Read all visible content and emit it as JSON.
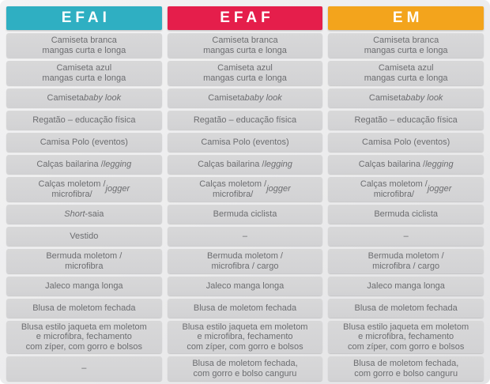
{
  "colors": {
    "efai_header": "#2fafc2",
    "efaf_header": "#e51e4b",
    "em_header": "#f3a41c",
    "cell_background": "#d5d5d6",
    "cell_text": "#6c6d70"
  },
  "table": {
    "columns": [
      {
        "id": "efai",
        "header": {
          "label": "EFAI",
          "color": "#2fafc2"
        },
        "cells": [
          "Camiseta branca\nmangas curta e longa",
          "Camiseta azul\nmangas curta e longa",
          "Camiseta *baby look*",
          "Regatão – educação física",
          "Camisa Polo (eventos)",
          "Calças bailarina / *legging*",
          "Calças moletom /\nmicrofibra/ *jogger*",
          "*Short*-saia",
          "Vestido",
          "Bermuda moletom /\nmicrofibra",
          "Jaleco manga longa",
          "Blusa de moletom fechada",
          "Blusa estilo jaqueta em moletom\ne microfibra, fechamento\ncom zíper, com gorro e bolsos",
          "–"
        ]
      },
      {
        "id": "efaf",
        "header": {
          "label": "EFAF",
          "color": "#e51e4b"
        },
        "cells": [
          "Camiseta branca\nmangas curta e longa",
          "Camiseta azul\nmangas curta e longa",
          "Camiseta *baby look*",
          "Regatão – educação física",
          "Camisa Polo (eventos)",
          "Calças bailarina / *legging*",
          "Calças moletom /\nmicrofibra/ *jogger*",
          "Bermuda ciclista",
          "–",
          "Bermuda moletom /\nmicrofibra / cargo",
          "Jaleco manga longa",
          "Blusa de moletom fechada",
          "Blusa estilo jaqueta em moletom\ne microfibra, fechamento\ncom zíper, com gorro e bolsos",
          "Blusa de moletom fechada,\ncom gorro e bolso canguru"
        ]
      },
      {
        "id": "em",
        "header": {
          "label": "EM",
          "color": "#f3a41c"
        },
        "cells": [
          "Camiseta branca\nmangas curta e longa",
          "Camiseta azul\nmangas curta e longa",
          "Camiseta *baby look*",
          "Regatão – educação física",
          "Camisa Polo (eventos)",
          "Calças bailarina / *legging*",
          "Calças moletom /\nmicrofibra/ *jogger*",
          "Bermuda ciclista",
          "–",
          "Bermuda moletom /\nmicrofibra / cargo",
          "Jaleco manga longa",
          "Blusa de moletom fechada",
          "Blusa estilo jaqueta em moletom\ne microfibra, fechamento\ncom zíper, com gorro e bolsos",
          "Blusa de moletom fechada,\ncom gorro e bolso canguru"
        ]
      }
    ]
  }
}
